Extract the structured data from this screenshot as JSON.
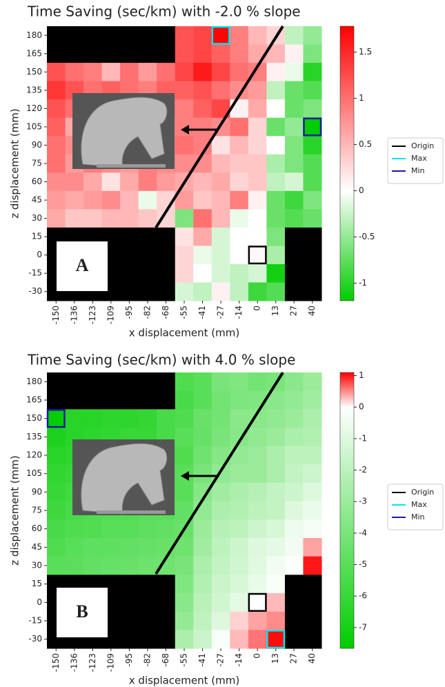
{
  "chart_data": [
    {
      "type": "heatmap",
      "title": "Time Saving (sec/km) with -2.0 % slope",
      "xlabel": "x displacement (mm)",
      "ylabel": "z displacement (mm)",
      "panel_label": "A",
      "x": [
        -150,
        -136,
        -123,
        -109,
        -95,
        -82,
        -68,
        -55,
        -41,
        -27,
        -14,
        0,
        13,
        27,
        40
      ],
      "y": [
        180,
        165,
        150,
        135,
        120,
        105,
        90,
        75,
        60,
        45,
        30,
        15,
        0,
        -15,
        -30
      ],
      "values": [
        [
          null,
          null,
          null,
          null,
          null,
          null,
          null,
          1.2,
          1.3,
          1.75,
          0.9,
          0.5,
          0.3,
          -0.3,
          -0.5
        ],
        [
          null,
          null,
          null,
          null,
          null,
          null,
          null,
          1.2,
          1.3,
          1.1,
          0.9,
          0.6,
          0.5,
          0.1,
          -0.6
        ],
        [
          1.2,
          1.0,
          0.9,
          0.5,
          1.0,
          0.7,
          1.0,
          1.3,
          1.6,
          1.3,
          1.0,
          0.9,
          0.1,
          -0.1,
          -1.0
        ],
        [
          1.4,
          1.2,
          1.0,
          1.1,
          1.0,
          0.9,
          1.1,
          1.1,
          1.2,
          1.0,
          0.8,
          0.7,
          -0.3,
          -0.7,
          -0.8
        ],
        [
          1.2,
          1.0,
          1.1,
          1.0,
          1.0,
          1.1,
          1.0,
          0.9,
          1.1,
          1.3,
          0.1,
          0.6,
          0.0,
          -0.7,
          -0.6
        ],
        [
          1.1,
          0.6,
          1.2,
          1.1,
          1.1,
          1.0,
          0.8,
          0.9,
          0.9,
          0.8,
          1.0,
          0.3,
          -0.7,
          -0.5,
          -1.18
        ],
        [
          1.0,
          0.8,
          0.8,
          0.9,
          0.8,
          0.9,
          0.8,
          1.0,
          0.9,
          0.2,
          0.5,
          0.3,
          0.0,
          -0.6,
          -1.0
        ],
        [
          1.0,
          0.7,
          0.9,
          0.8,
          0.7,
          0.9,
          0.8,
          0.8,
          0.8,
          0.5,
          0.4,
          0.4,
          -0.4,
          -0.6,
          -0.8
        ],
        [
          0.8,
          0.8,
          0.6,
          0.2,
          0.6,
          0.9,
          0.7,
          0.6,
          0.5,
          0.6,
          0.3,
          0.4,
          -0.3,
          -0.2,
          -0.8
        ],
        [
          0.7,
          0.6,
          0.7,
          0.8,
          0.5,
          -0.1,
          0.3,
          0.7,
          0.4,
          0.5,
          0.9,
          0.1,
          -0.7,
          -0.9,
          -0.6
        ],
        [
          0.6,
          0.4,
          0.4,
          0.5,
          0.5,
          0.4,
          0.3,
          -0.6,
          1.0,
          0.5,
          -0.1,
          0.0,
          -0.7,
          -0.8,
          -0.7
        ],
        [
          null,
          null,
          null,
          null,
          null,
          null,
          null,
          0.2,
          0.6,
          -0.2,
          0.0,
          0.0,
          -0.6,
          null,
          null
        ],
        [
          null,
          null,
          null,
          null,
          null,
          null,
          null,
          0.3,
          -0.1,
          -0.2,
          0.0,
          0.05,
          -0.4,
          null,
          null
        ],
        [
          null,
          null,
          null,
          null,
          null,
          null,
          null,
          0.3,
          0.0,
          -0.2,
          -0.3,
          -0.2,
          -1.1,
          null,
          null
        ],
        [
          null,
          null,
          null,
          null,
          null,
          null,
          null,
          -0.2,
          -0.3,
          0.1,
          -0.3,
          -0.9,
          -0.8,
          null,
          null
        ]
      ],
      "colormap": [
        "#00cc00",
        "#ffffff",
        "#ff0000"
      ],
      "mask_color": "#000000",
      "clim": [
        -1.19,
        1.78
      ],
      "cticks": [
        1.5,
        1.0,
        0.5,
        0.0,
        -0.5,
        -1.0
      ],
      "highlights": [
        {
          "name": "Origin",
          "color": "#000000",
          "x": 0,
          "y": 0
        },
        {
          "name": "Max",
          "color": "#00e5ee",
          "x": -27,
          "y": 180
        },
        {
          "name": "Min",
          "color": "#1a1aa0",
          "x": 40,
          "y": 105
        }
      ]
    },
    {
      "type": "heatmap",
      "title": "Time Saving (sec/km) with 4.0 % slope",
      "xlabel": "x displacement (mm)",
      "ylabel": "z displacement (mm)",
      "panel_label": "B",
      "x": [
        -150,
        -136,
        -123,
        -109,
        -95,
        -82,
        -68,
        -55,
        -41,
        -27,
        -14,
        0,
        13,
        27,
        40
      ],
      "y": [
        180,
        165,
        150,
        135,
        120,
        105,
        90,
        75,
        60,
        45,
        30,
        15,
        0,
        -15,
        -30
      ],
      "values": [
        [
          null,
          null,
          null,
          null,
          null,
          null,
          null,
          -5.3,
          -5.0,
          -4.0,
          -3.8,
          -4.2,
          -4.0,
          -3.5,
          -3.0
        ],
        [
          null,
          null,
          null,
          null,
          null,
          null,
          null,
          -5.5,
          -5.0,
          -4.2,
          -3.9,
          -3.8,
          -3.5,
          -3.2,
          -2.8
        ],
        [
          -7.5,
          -6.5,
          -6.5,
          -6.3,
          -6.3,
          -6.1,
          -5.5,
          -5.3,
          -4.5,
          -4.2,
          -3.5,
          -3.5,
          -3.3,
          -3.0,
          -2.5
        ],
        [
          -6.8,
          -6.5,
          -6.3,
          -6.2,
          -6.0,
          -6.0,
          -5.5,
          -5.0,
          -4.6,
          -4.0,
          -3.6,
          -3.3,
          -3.0,
          -2.5,
          -2.3
        ],
        [
          -6.5,
          -6.3,
          -6.0,
          -6.0,
          -6.0,
          -5.8,
          -5.5,
          -5.3,
          -4.3,
          -3.7,
          -3.2,
          -3.0,
          -2.5,
          -2.0,
          -2.0
        ],
        [
          -6.2,
          -6.0,
          -5.8,
          -5.6,
          -5.8,
          -5.5,
          -5.4,
          -5.0,
          -4.0,
          -3.3,
          -3.0,
          -3.0,
          -2.5,
          -1.8,
          -1.5
        ],
        [
          -6.0,
          -5.7,
          -5.5,
          -5.5,
          -5.5,
          -5.3,
          -5.2,
          -5.0,
          -3.6,
          -2.8,
          -2.5,
          -2.2,
          -1.8,
          -1.5,
          -1.0
        ],
        [
          -5.8,
          -5.5,
          -5.3,
          -5.2,
          -5.2,
          -5.0,
          -5.0,
          -4.7,
          -3.3,
          -2.5,
          -2.3,
          -2.0,
          -1.8,
          -1.0,
          -0.6
        ],
        [
          -5.5,
          -5.3,
          -5.2,
          -5.0,
          -5.0,
          -4.8,
          -4.7,
          -4.5,
          -3.0,
          -2.2,
          -2.0,
          -1.5,
          -1.2,
          -0.5,
          -0.3
        ],
        [
          -5.3,
          -5.0,
          -4.8,
          -4.8,
          -4.7,
          -4.6,
          -4.5,
          -4.3,
          -2.8,
          -2.0,
          -1.5,
          -1.0,
          -0.8,
          -0.4,
          0.4
        ],
        [
          -5.0,
          -4.9,
          -4.7,
          -4.6,
          -4.5,
          -4.4,
          -4.3,
          -4.0,
          -2.5,
          -1.8,
          -1.4,
          -0.9,
          -0.4,
          -0.1,
          1.0
        ],
        [
          null,
          null,
          null,
          null,
          null,
          null,
          null,
          -3.8,
          -2.3,
          -1.6,
          -1.2,
          -0.7,
          -0.2,
          null,
          null
        ],
        [
          null,
          null,
          null,
          null,
          null,
          null,
          null,
          -3.5,
          -2.1,
          -1.4,
          -0.8,
          0.0,
          0.3,
          null,
          null
        ],
        [
          null,
          null,
          null,
          null,
          null,
          null,
          null,
          -3.2,
          -1.9,
          -1.0,
          0.2,
          0.4,
          0.5,
          null,
          null
        ],
        [
          null,
          null,
          null,
          null,
          null,
          null,
          null,
          -2.5,
          -1.6,
          -0.2,
          0.3,
          0.6,
          1.05,
          null,
          null
        ]
      ],
      "colormap": [
        "#00cc00",
        "#ffffff",
        "#ff0000"
      ],
      "mask_color": "#000000",
      "clim": [
        -7.66,
        1.1
      ],
      "cticks": [
        1,
        0,
        -1,
        -2,
        -3,
        -4,
        -5,
        -6,
        -7
      ],
      "highlights": [
        {
          "name": "Origin",
          "color": "#000000",
          "x": 0,
          "y": 0
        },
        {
          "name": "Max",
          "color": "#00e5ee",
          "x": 13,
          "y": -30
        },
        {
          "name": "Min",
          "color": "#1a1aa0",
          "x": -150,
          "y": 150
        }
      ]
    }
  ]
}
